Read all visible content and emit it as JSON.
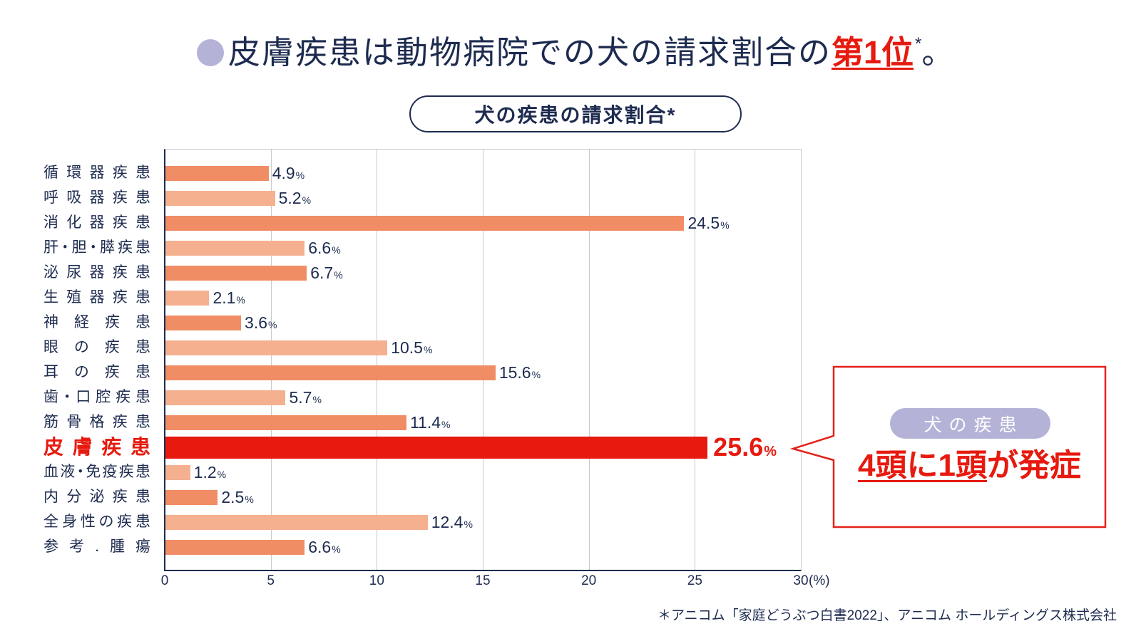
{
  "title": {
    "main": "皮膚疾患は動物病院での犬の請求割合の",
    "emphasis": "第1位",
    "asterisk": "*",
    "end": "。"
  },
  "callout": {
    "badge": "犬の疾患",
    "emphasis": "4頭に1頭",
    "rest": "が発症"
  },
  "footnote": "＊アニコム「家庭どうぶつ白書2022」、アニコム ホールディングス株式会社",
  "colors": {
    "navy": "#1d2b4f",
    "red": "#e61a0f",
    "lavender": "#b4b3d7",
    "grid": "#c9c9c9",
    "callout_border": "#e3211a"
  },
  "chart_data": {
    "type": "bar",
    "horizontal": true,
    "title": "犬の疾患の請求割合*",
    "categories": [
      "循環器疾患",
      "呼吸器疾患",
      "消化器疾患",
      "肝・胆・膵疾患",
      "泌尿器疾患",
      "生殖器疾患",
      "神経疾患",
      "眼の疾患",
      "耳の疾患",
      "歯・口腔疾患",
      "筋骨格疾患",
      "皮膚疾患",
      "血液・免疫疾患",
      "内分泌疾患",
      "全身性の疾患",
      "参考.腫瘍"
    ],
    "values": [
      4.9,
      5.2,
      24.5,
      6.6,
      6.7,
      2.1,
      3.6,
      10.5,
      15.6,
      5.7,
      11.4,
      25.6,
      1.2,
      2.5,
      12.4,
      6.6
    ],
    "value_suffix": "%",
    "highlight_index": 11,
    "bar_colors": [
      "#f08d65",
      "#f5b08f",
      "#f08d65",
      "#f5b08f",
      "#f08d65",
      "#f5b08f",
      "#f08d65",
      "#f5b08f",
      "#f08d65",
      "#f5b08f",
      "#f08d65",
      "#e61a0f",
      "#f5b08f",
      "#f08d65",
      "#f5b08f",
      "#f08d65"
    ],
    "xlabel": "(%)",
    "xlim": [
      0,
      30
    ],
    "x_ticks": [
      0,
      5,
      10,
      15,
      20,
      25,
      30
    ],
    "grid": true
  }
}
